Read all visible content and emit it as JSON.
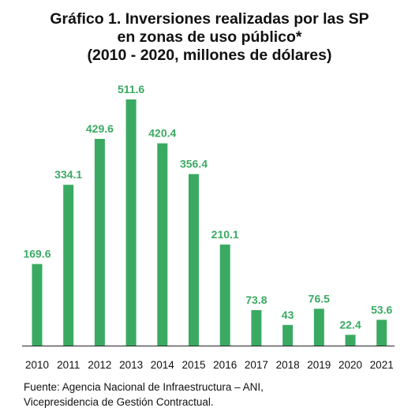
{
  "title_lines": [
    "Gráfico 1. Inversiones realizadas por las SP",
    "en zonas de uso público*",
    "(2010 - 2020, millones de dólares)"
  ],
  "source_lines": [
    "Fuente: Agencia Nacional de Infraestructura – ANI,",
    "Vicepresidencia de Gestión Contractual."
  ],
  "colors": {
    "bar": "#3aaa63",
    "label": "#3aaa63",
    "axis": "#222222",
    "text": "#111111"
  },
  "chart_data": {
    "type": "bar",
    "title": "Gráfico 1. Inversiones realizadas por las SP en zonas de uso público* (2010 - 2020, millones de dólares)",
    "categories": [
      "2010",
      "2011",
      "2012",
      "2013",
      "2014",
      "2015",
      "2016",
      "2017",
      "2018",
      "2019",
      "2020",
      "2021"
    ],
    "values": [
      169.6,
      334.1,
      429.6,
      511.6,
      420.4,
      356.4,
      210.1,
      73.8,
      43,
      76.5,
      22.4,
      53.6
    ],
    "value_labels": [
      "169.6",
      "334.1",
      "429.6",
      "511.6",
      "420.4",
      "356.4",
      "210.1",
      "73.8",
      "43",
      "76.5",
      "22.4",
      "53.6"
    ],
    "xlabel": "",
    "ylabel": "",
    "ylim": [
      0,
      511.6
    ],
    "grid": false,
    "legend": "none"
  }
}
